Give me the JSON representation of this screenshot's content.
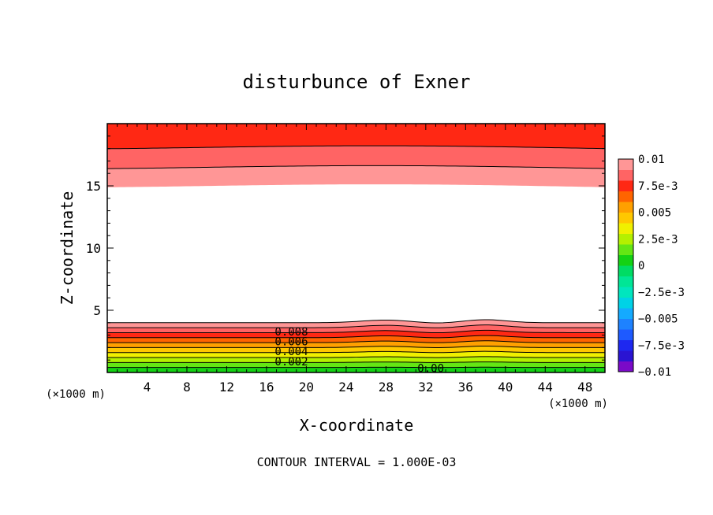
{
  "chart_data": {
    "type": "contour",
    "title": "disturbunce of Exner",
    "xlabel": "X-coordinate",
    "ylabel": "Z-coordinate",
    "x_unit": "(×1000 m)",
    "y_unit": "(×1000 m)",
    "xlim": [
      0,
      50
    ],
    "ylim": [
      0,
      20
    ],
    "xticks": [
      4,
      8,
      12,
      16,
      20,
      24,
      28,
      32,
      36,
      40,
      44,
      48
    ],
    "yticks": [
      5,
      10,
      15
    ],
    "footer": "CONTOUR INTERVAL = 1.000E-03",
    "colorbar": {
      "ticks": [
        "0.01",
        "7.5e-3",
        "0.005",
        "2.5e-3",
        "0",
        "−2.5e-3",
        "−0.005",
        "−7.5e-3",
        "−0.01"
      ],
      "levels": [
        {
          "from": -0.01,
          "to": -0.009,
          "color": "#7a0ac8"
        },
        {
          "from": -0.009,
          "to": -0.008,
          "color": "#2a14d2"
        },
        {
          "from": -0.008,
          "to": -0.007,
          "color": "#1e28f0"
        },
        {
          "from": -0.007,
          "to": -0.006,
          "color": "#1e5aff"
        },
        {
          "from": -0.006,
          "to": -0.005,
          "color": "#1e82ff"
        },
        {
          "from": -0.005,
          "to": -0.004,
          "color": "#14aaff"
        },
        {
          "from": -0.004,
          "to": -0.003,
          "color": "#00d2e6"
        },
        {
          "from": -0.003,
          "to": -0.002,
          "color": "#00e6be"
        },
        {
          "from": -0.002,
          "to": -0.001,
          "color": "#00e696"
        },
        {
          "from": -0.001,
          "to": 0.0,
          "color": "#00dc64"
        },
        {
          "from": 0.0,
          "to": 0.001,
          "color": "#14d214"
        },
        {
          "from": 0.001,
          "to": 0.002,
          "color": "#64e614"
        },
        {
          "from": 0.002,
          "to": 0.003,
          "color": "#b4f000"
        },
        {
          "from": 0.003,
          "to": 0.004,
          "color": "#f0f000"
        },
        {
          "from": 0.004,
          "to": 0.005,
          "color": "#ffc800"
        },
        {
          "from": 0.005,
          "to": 0.006,
          "color": "#ffa000"
        },
        {
          "from": 0.006,
          "to": 0.007,
          "color": "#ff6400"
        },
        {
          "from": 0.007,
          "to": 0.008,
          "color": "#ff2814"
        },
        {
          "from": 0.008,
          "to": 0.009,
          "color": "#ff6464"
        },
        {
          "from": 0.009,
          "to": 0.01,
          "color": "#ff9696"
        }
      ]
    },
    "field_bands": [
      {
        "level_from": 0.0,
        "level_to": 0.001,
        "top_z": 0.4
      },
      {
        "level_from": 0.001,
        "level_to": 0.002,
        "top_z": 0.8
      },
      {
        "level_from": 0.002,
        "level_to": 0.003,
        "top_z": 1.2
      },
      {
        "level_from": 0.003,
        "level_to": 0.004,
        "top_z": 1.6
      },
      {
        "level_from": 0.004,
        "level_to": 0.005,
        "top_z": 2.0
      },
      {
        "level_from": 0.005,
        "level_to": 0.006,
        "top_z": 2.4
      },
      {
        "level_from": 0.006,
        "level_to": 0.007,
        "top_z": 2.8
      },
      {
        "level_from": 0.007,
        "level_to": 0.008,
        "top_z": 3.2
      },
      {
        "level_from": 0.008,
        "level_to": 0.009,
        "top_z": 3.6
      },
      {
        "level_from": 0.009,
        "level_to": 0.01,
        "top_z": 4.0
      }
    ],
    "upper_bands": [
      {
        "level_from": 0.009,
        "level_to": 0.01,
        "bottom_z": 15.0
      },
      {
        "level_from": 0.008,
        "level_to": 0.009,
        "bottom_z": 16.5
      },
      {
        "level_from": 0.007,
        "level_to": 0.008,
        "bottom_z": 18.1
      }
    ],
    "contour_labels": [
      {
        "text": "0.008",
        "x": 18.5,
        "z": 3.3
      },
      {
        "text": "0.006",
        "x": 18.5,
        "z": 2.5
      },
      {
        "text": "0.004",
        "x": 18.5,
        "z": 1.7
      },
      {
        "text": "0.002",
        "x": 18.5,
        "z": 0.9
      },
      {
        "text": "0.00",
        "x": 32.5,
        "z": 0.35
      }
    ]
  }
}
